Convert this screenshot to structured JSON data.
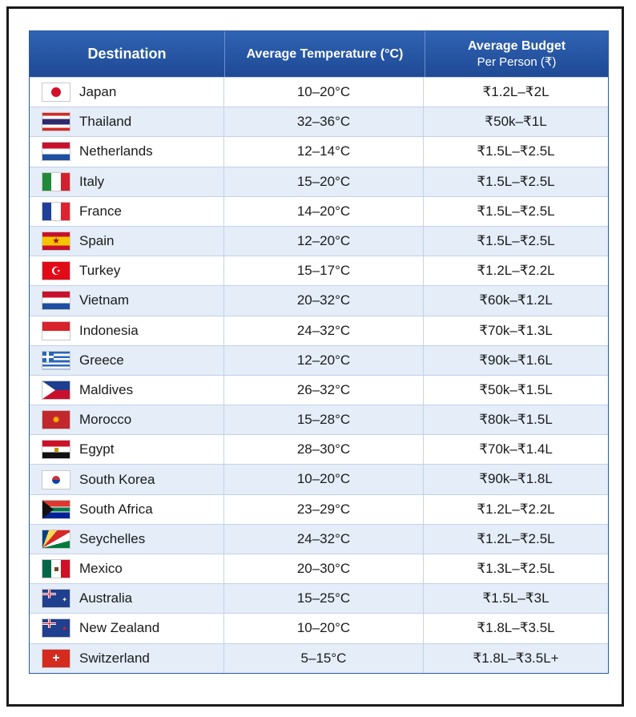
{
  "table": {
    "headers": {
      "destination": "Destination",
      "temperature": "Average Temperature (°C)",
      "budget_line1": "Average Budget",
      "budget_line2": "Per Person (₹)"
    },
    "rows": [
      {
        "destination": "Japan",
        "temperature": "10–20°C",
        "budget": "₹1.2L–₹2L",
        "flag": "japan-flag"
      },
      {
        "destination": "Thailand",
        "temperature": "32–36°C",
        "budget": "₹50k–₹1L",
        "flag": "thailand-flag"
      },
      {
        "destination": "Netherlands",
        "temperature": "12–14°C",
        "budget": "₹1.5L–₹2.5L",
        "flag": "netherlands-flag"
      },
      {
        "destination": "Italy",
        "temperature": "15–20°C",
        "budget": "₹1.5L–₹2.5L",
        "flag": "italy-flag"
      },
      {
        "destination": "France",
        "temperature": "14–20°C",
        "budget": "₹1.5L–₹2.5L",
        "flag": "france-flag"
      },
      {
        "destination": "Spain",
        "temperature": "12–20°C",
        "budget": "₹1.5L–₹2.5L",
        "flag": "spain-flag"
      },
      {
        "destination": "Turkey",
        "temperature": "15–17°C",
        "budget": "₹1.2L–₹2.2L",
        "flag": "turkey-flag"
      },
      {
        "destination": "Vietnam",
        "temperature": "20–32°C",
        "budget": "₹60k–₹1.2L",
        "flag": "vietnam-flag"
      },
      {
        "destination": "Indonesia",
        "temperature": "24–32°C",
        "budget": "₹70k–₹1.3L",
        "flag": "indonesia-flag"
      },
      {
        "destination": "Greece",
        "temperature": "12–20°C",
        "budget": "₹90k–₹1.6L",
        "flag": "greece-flag"
      },
      {
        "destination": "Maldives",
        "temperature": "26–32°C",
        "budget": "₹50k–₹1.5L",
        "flag": "maldives-flag"
      },
      {
        "destination": "Morocco",
        "temperature": "15–28°C",
        "budget": "₹80k–₹1.5L",
        "flag": "morocco-flag"
      },
      {
        "destination": "Egypt",
        "temperature": "28–30°C",
        "budget": "₹70k–₹1.4L",
        "flag": "egypt-flag"
      },
      {
        "destination": "South Korea",
        "temperature": "10–20°C",
        "budget": "₹90k–₹1.8L",
        "flag": "south-korea-flag"
      },
      {
        "destination": "South Africa",
        "temperature": "23–29°C",
        "budget": "₹1.2L–₹2.2L",
        "flag": "south-africa-flag"
      },
      {
        "destination": "Seychelles",
        "temperature": "24–32°C",
        "budget": "₹1.2L–₹2.5L",
        "flag": "seychelles-flag"
      },
      {
        "destination": "Mexico",
        "temperature": "20–30°C",
        "budget": "₹1.3L–₹2.5L",
        "flag": "mexico-flag"
      },
      {
        "destination": "Australia",
        "temperature": "15–25°C",
        "budget": "₹1.5L–₹3L",
        "flag": "australia-flag"
      },
      {
        "destination": "New Zealand",
        "temperature": "10–20°C",
        "budget": "₹1.8L–₹3.5L",
        "flag": "new-zealand-flag"
      },
      {
        "destination": "Switzerland",
        "temperature": "5–15°C",
        "budget": "₹1.8L–₹3.5L+",
        "flag": "switzerland-flag"
      }
    ]
  },
  "colors": {
    "header_bg": "#2a5aa8",
    "row_alt_bg": "#e4edf8",
    "border": "#c3d2ea"
  }
}
